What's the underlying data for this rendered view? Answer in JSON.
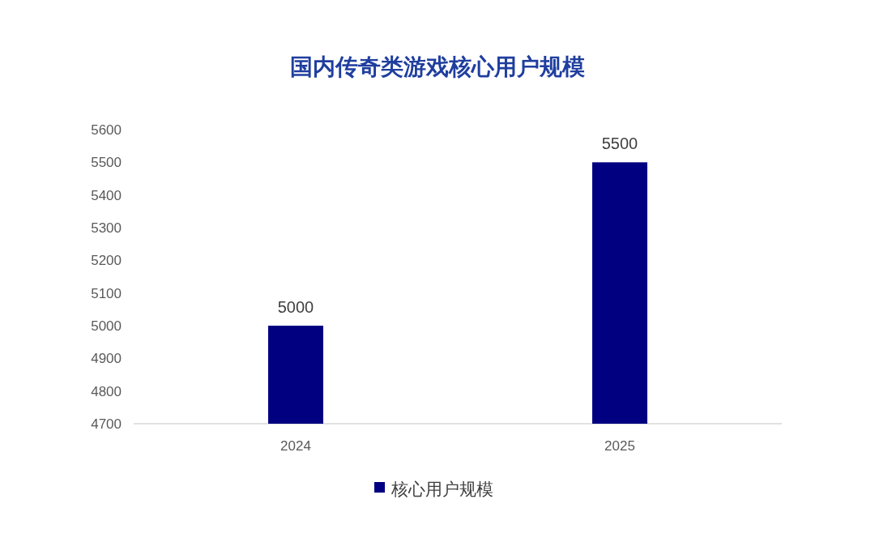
{
  "chart_data": {
    "type": "bar",
    "title": "国内传奇类游戏核心用户规模",
    "categories": [
      "2024",
      "2025"
    ],
    "series": [
      {
        "name": "核心用户规模",
        "color": "#000080",
        "values": [
          5000,
          5500
        ]
      }
    ],
    "ylim": [
      4700,
      5600
    ],
    "yticks": [
      4700,
      4800,
      4900,
      5000,
      5100,
      5200,
      5300,
      5400,
      5500,
      5600
    ],
    "data_labels": true,
    "legend": "bottom"
  }
}
